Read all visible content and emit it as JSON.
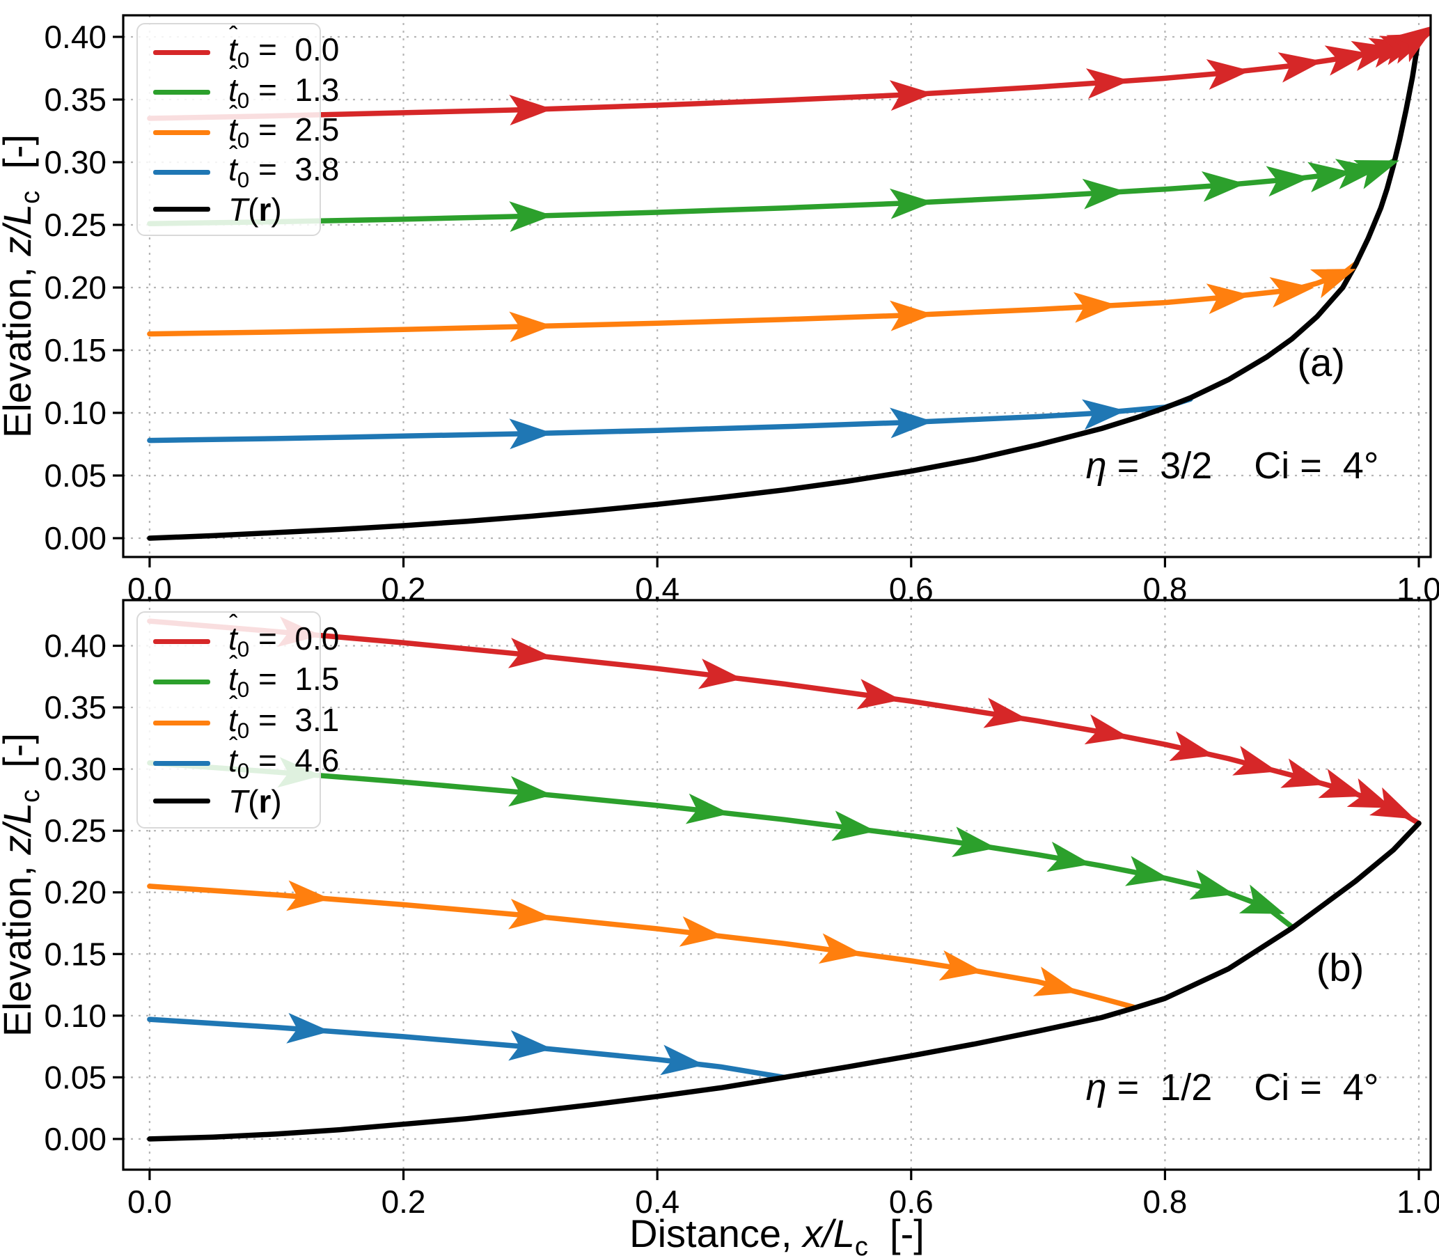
{
  "colors": {
    "red": "#d62728",
    "green": "#2ca02c",
    "orange": "#ff7f0e",
    "blue": "#1f77b4",
    "curve": "#000000",
    "grid": "#b5b5b5",
    "legend_border": "#d9d9d9"
  },
  "axes": {
    "xlabel": {
      "prefix": "Distance, ",
      "var1": "x",
      "slash": "/",
      "var2": "L",
      "sub": "c",
      "suffix": "  [-]"
    },
    "ylabel": {
      "prefix": "Elevation, ",
      "var1": "z",
      "slash": "/",
      "var2": "L",
      "sub": "c",
      "suffix": "  [-]"
    }
  },
  "chart_data": [
    {
      "type": "line",
      "panel": "a",
      "panel_label": "(a)",
      "panel_label_pos": [
        0.923,
        0.14
      ],
      "annotation": {
        "var": "η",
        "rest": " =  3/2",
        "gap": "    ",
        "name2": "Ci",
        "rest2": " =  4°",
        "pos": [
          0.853,
          0.058
        ]
      },
      "xlim": [
        -0.0208,
        1.0093
      ],
      "ylim": [
        -0.015,
        0.4172
      ],
      "grid": true,
      "legend_position": "upper left",
      "xticks": [
        "0.0",
        "0.2",
        "0.4",
        "0.6",
        "0.8",
        "1.0"
      ],
      "xtick_vals": [
        0,
        0.2,
        0.4,
        0.6,
        0.8,
        1.0
      ],
      "yticks": [
        "0.00",
        "0.05",
        "0.10",
        "0.15",
        "0.20",
        "0.25",
        "0.30",
        "0.35",
        "0.40"
      ],
      "ytick_vals": [
        0,
        0.05,
        0.1,
        0.15,
        0.2,
        0.25,
        0.3,
        0.35,
        0.4
      ],
      "legend": [
        {
          "base": "t",
          "hat": "ˆ",
          "sub": "0",
          "mid": " =  0.0",
          "bold": "",
          "post": "",
          "color": "red"
        },
        {
          "base": "t",
          "hat": "ˆ",
          "sub": "0",
          "mid": " =  1.3",
          "bold": "",
          "post": "",
          "color": "green"
        },
        {
          "base": "t",
          "hat": "ˆ",
          "sub": "0",
          "mid": " =  2.5",
          "bold": "",
          "post": "",
          "color": "orange"
        },
        {
          "base": "t",
          "hat": "ˆ",
          "sub": "0",
          "mid": " =  3.8",
          "bold": "",
          "post": "",
          "color": "blue"
        },
        {
          "base": "T",
          "hat": "",
          "sub": "",
          "mid": "(",
          "bold": "r",
          "post": ")",
          "color": "curve"
        }
      ],
      "series": [
        {
          "name": "trajectory-t0-0.0",
          "color": "red",
          "points": [
            [
              0,
              0.335
            ],
            [
              0.1,
              0.337
            ],
            [
              0.2,
              0.3395
            ],
            [
              0.3,
              0.342
            ],
            [
              0.4,
              0.3455
            ],
            [
              0.5,
              0.3495
            ],
            [
              0.6,
              0.354
            ],
            [
              0.7,
              0.36
            ],
            [
              0.8,
              0.367
            ],
            [
              0.85,
              0.3715
            ],
            [
              0.9,
              0.377
            ],
            [
              0.93,
              0.3815
            ],
            [
              0.95,
              0.385
            ],
            [
              0.97,
              0.389
            ],
            [
              0.98,
              0.3915
            ],
            [
              0.99,
              0.3945
            ],
            [
              0.995,
              0.3965
            ],
            [
              1.0,
              0.4
            ]
          ],
          "arrow_x": [
            0.3,
            0.6,
            0.755,
            0.85,
            0.907,
            0.944,
            0.965,
            0.979,
            0.988,
            0.994,
            0.999
          ]
        },
        {
          "name": "trajectory-t0-1.3",
          "color": "green",
          "points": [
            [
              0,
              0.251
            ],
            [
              0.1,
              0.2525
            ],
            [
              0.2,
              0.2545
            ],
            [
              0.3,
              0.257
            ],
            [
              0.4,
              0.26
            ],
            [
              0.5,
              0.2635
            ],
            [
              0.6,
              0.2675
            ],
            [
              0.7,
              0.2725
            ],
            [
              0.8,
              0.2785
            ],
            [
              0.85,
              0.282
            ],
            [
              0.9,
              0.2865
            ],
            [
              0.93,
              0.29
            ],
            [
              0.95,
              0.2925
            ],
            [
              0.965,
              0.2945
            ],
            [
              0.975,
              0.298
            ],
            [
              0.98,
              0.301
            ]
          ],
          "arrow_x": [
            0.3,
            0.6,
            0.752,
            0.846,
            0.897,
            0.93,
            0.952,
            0.968
          ]
        },
        {
          "name": "trajectory-t0-2.5",
          "color": "orange",
          "points": [
            [
              0,
              0.163
            ],
            [
              0.1,
              0.1645
            ],
            [
              0.2,
              0.1665
            ],
            [
              0.3,
              0.169
            ],
            [
              0.4,
              0.1715
            ],
            [
              0.5,
              0.1745
            ],
            [
              0.6,
              0.178
            ],
            [
              0.7,
              0.1825
            ],
            [
              0.8,
              0.188
            ],
            [
              0.85,
              0.1925
            ],
            [
              0.9,
              0.198
            ],
            [
              0.92,
              0.2035
            ],
            [
              0.94,
              0.211
            ],
            [
              0.951,
              0.2195
            ]
          ],
          "arrow_x": [
            0.3,
            0.6,
            0.745,
            0.85,
            0.9,
            0.934
          ]
        },
        {
          "name": "trajectory-t0-3.8",
          "color": "blue",
          "points": [
            [
              0,
              0.078
            ],
            [
              0.1,
              0.0795
            ],
            [
              0.2,
              0.0815
            ],
            [
              0.3,
              0.0835
            ],
            [
              0.4,
              0.086
            ],
            [
              0.5,
              0.089
            ],
            [
              0.6,
              0.0925
            ],
            [
              0.7,
              0.097
            ],
            [
              0.75,
              0.1
            ],
            [
              0.8,
              0.1045
            ],
            [
              0.82,
              0.111
            ]
          ],
          "arrow_x": [
            0.3,
            0.6,
            0.752
          ]
        },
        {
          "name": "topography-curve",
          "color": "curve",
          "points": [
            [
              0,
              0
            ],
            [
              0.05,
              0.002
            ],
            [
              0.1,
              0.0045
            ],
            [
              0.15,
              0.007
            ],
            [
              0.2,
              0.01
            ],
            [
              0.25,
              0.0135
            ],
            [
              0.3,
              0.0175
            ],
            [
              0.35,
              0.022
            ],
            [
              0.4,
              0.027
            ],
            [
              0.45,
              0.0325
            ],
            [
              0.5,
              0.0385
            ],
            [
              0.55,
              0.0455
            ],
            [
              0.6,
              0.0535
            ],
            [
              0.65,
              0.063
            ],
            [
              0.7,
              0.0745
            ],
            [
              0.75,
              0.0875
            ],
            [
              0.78,
              0.097
            ],
            [
              0.8,
              0.104
            ],
            [
              0.82,
              0.112
            ],
            [
              0.85,
              0.1265
            ],
            [
              0.88,
              0.1445
            ],
            [
              0.9,
              0.159
            ],
            [
              0.92,
              0.177
            ],
            [
              0.94,
              0.2
            ],
            [
              0.95,
              0.218
            ],
            [
              0.96,
              0.239
            ],
            [
              0.97,
              0.2635
            ],
            [
              0.975,
              0.279
            ],
            [
              0.98,
              0.2975
            ],
            [
              0.985,
              0.3185
            ],
            [
              0.99,
              0.342
            ],
            [
              0.995,
              0.368
            ],
            [
              1.0,
              0.4
            ]
          ],
          "arrow_x": []
        }
      ]
    },
    {
      "type": "line",
      "panel": "b",
      "panel_label": "(b)",
      "panel_label_pos": [
        0.938,
        0.139
      ],
      "annotation": {
        "var": "η",
        "rest": " =  1/2",
        "gap": "    ",
        "name2": "Ci",
        "rest2": " =  4°",
        "pos": [
          0.853,
          0.042
        ]
      },
      "xlim": [
        -0.0208,
        1.0093
      ],
      "ylim": [
        -0.0249,
        0.437
      ],
      "grid": true,
      "legend_position": "upper left",
      "xticks": [
        "0.0",
        "0.2",
        "0.4",
        "0.6",
        "0.8",
        "1.0"
      ],
      "xtick_vals": [
        0,
        0.2,
        0.4,
        0.6,
        0.8,
        1.0
      ],
      "yticks": [
        "0.00",
        "0.05",
        "0.10",
        "0.15",
        "0.20",
        "0.25",
        "0.30",
        "0.35",
        "0.40"
      ],
      "ytick_vals": [
        0,
        0.05,
        0.1,
        0.15,
        0.2,
        0.25,
        0.3,
        0.35,
        0.4
      ],
      "legend": [
        {
          "base": "t",
          "hat": "ˆ",
          "sub": "0",
          "mid": " =  0.0",
          "bold": "",
          "post": "",
          "color": "red"
        },
        {
          "base": "t",
          "hat": "ˆ",
          "sub": "0",
          "mid": " =  1.5",
          "bold": "",
          "post": "",
          "color": "green"
        },
        {
          "base": "t",
          "hat": "ˆ",
          "sub": "0",
          "mid": " =  3.1",
          "bold": "",
          "post": "",
          "color": "orange"
        },
        {
          "base": "t",
          "hat": "ˆ",
          "sub": "0",
          "mid": " =  4.6",
          "bold": "",
          "post": "",
          "color": "blue"
        },
        {
          "base": "T",
          "hat": "",
          "sub": "",
          "mid": "(",
          "bold": "r",
          "post": ")",
          "color": "curve"
        }
      ],
      "series": [
        {
          "name": "trajectory-t0-0.0",
          "color": "red",
          "points": [
            [
              0,
              0.42
            ],
            [
              0.1,
              0.4115
            ],
            [
              0.2,
              0.4025
            ],
            [
              0.3,
              0.3925
            ],
            [
              0.4,
              0.3815
            ],
            [
              0.5,
              0.369
            ],
            [
              0.6,
              0.355
            ],
            [
              0.7,
              0.339
            ],
            [
              0.75,
              0.33
            ],
            [
              0.8,
              0.32
            ],
            [
              0.85,
              0.3085
            ],
            [
              0.9,
              0.295
            ],
            [
              0.93,
              0.2865
            ],
            [
              0.95,
              0.28
            ],
            [
              0.97,
              0.272
            ],
            [
              0.985,
              0.265
            ],
            [
              1.0,
              0.256
            ]
          ],
          "arrow_x": [
            0.118,
            0.3,
            0.45,
            0.575,
            0.675,
            0.755,
            0.822,
            0.872,
            0.91,
            0.94,
            0.963,
            0.981
          ]
        },
        {
          "name": "trajectory-t0-1.5",
          "color": "green",
          "points": [
            [
              0,
              0.305
            ],
            [
              0.1,
              0.2975
            ],
            [
              0.2,
              0.2895
            ],
            [
              0.3,
              0.2805
            ],
            [
              0.4,
              0.2705
            ],
            [
              0.5,
              0.259
            ],
            [
              0.6,
              0.246
            ],
            [
              0.65,
              0.2385
            ],
            [
              0.7,
              0.2305
            ],
            [
              0.75,
              0.2215
            ],
            [
              0.8,
              0.2115
            ],
            [
              0.85,
              0.1995
            ],
            [
              0.88,
              0.188
            ],
            [
              0.9,
              0.172
            ]
          ],
          "arrow_x": [
            0.118,
            0.3,
            0.44,
            0.555,
            0.65,
            0.725,
            0.787,
            0.838,
            0.878
          ]
        },
        {
          "name": "trajectory-t0-3.1",
          "color": "orange",
          "points": [
            [
              0,
              0.205
            ],
            [
              0.1,
              0.198
            ],
            [
              0.2,
              0.19
            ],
            [
              0.3,
              0.181
            ],
            [
              0.4,
              0.1705
            ],
            [
              0.5,
              0.1585
            ],
            [
              0.6,
              0.1445
            ],
            [
              0.65,
              0.1365
            ],
            [
              0.7,
              0.1275
            ],
            [
              0.75,
              0.114
            ],
            [
              0.775,
              0.107
            ]
          ],
          "arrow_x": [
            0.125,
            0.3,
            0.435,
            0.545,
            0.64,
            0.715
          ]
        },
        {
          "name": "trajectory-t0-4.6",
          "color": "blue",
          "points": [
            [
              0,
              0.097
            ],
            [
              0.1,
              0.0905
            ],
            [
              0.2,
              0.083
            ],
            [
              0.3,
              0.0745
            ],
            [
              0.4,
              0.0645
            ],
            [
              0.45,
              0.0585
            ],
            [
              0.5,
              0.05
            ]
          ],
          "arrow_x": [
            0.125,
            0.3,
            0.42
          ]
        },
        {
          "name": "topography-curve",
          "color": "curve",
          "points": [
            [
              0,
              0
            ],
            [
              0.05,
              0.0015
            ],
            [
              0.1,
              0.004
            ],
            [
              0.15,
              0.0075
            ],
            [
              0.2,
              0.012
            ],
            [
              0.25,
              0.0165
            ],
            [
              0.3,
              0.022
            ],
            [
              0.35,
              0.028
            ],
            [
              0.4,
              0.0345
            ],
            [
              0.45,
              0.0415
            ],
            [
              0.5,
              0.05
            ],
            [
              0.55,
              0.0585
            ],
            [
              0.6,
              0.0675
            ],
            [
              0.65,
              0.077
            ],
            [
              0.7,
              0.0875
            ],
            [
              0.75,
              0.0985
            ],
            [
              0.775,
              0.106
            ],
            [
              0.8,
              0.114
            ],
            [
              0.85,
              0.138
            ],
            [
              0.9,
              0.171
            ],
            [
              0.95,
              0.209
            ],
            [
              0.98,
              0.2345
            ],
            [
              1.0,
              0.256
            ]
          ],
          "arrow_x": []
        }
      ]
    }
  ]
}
